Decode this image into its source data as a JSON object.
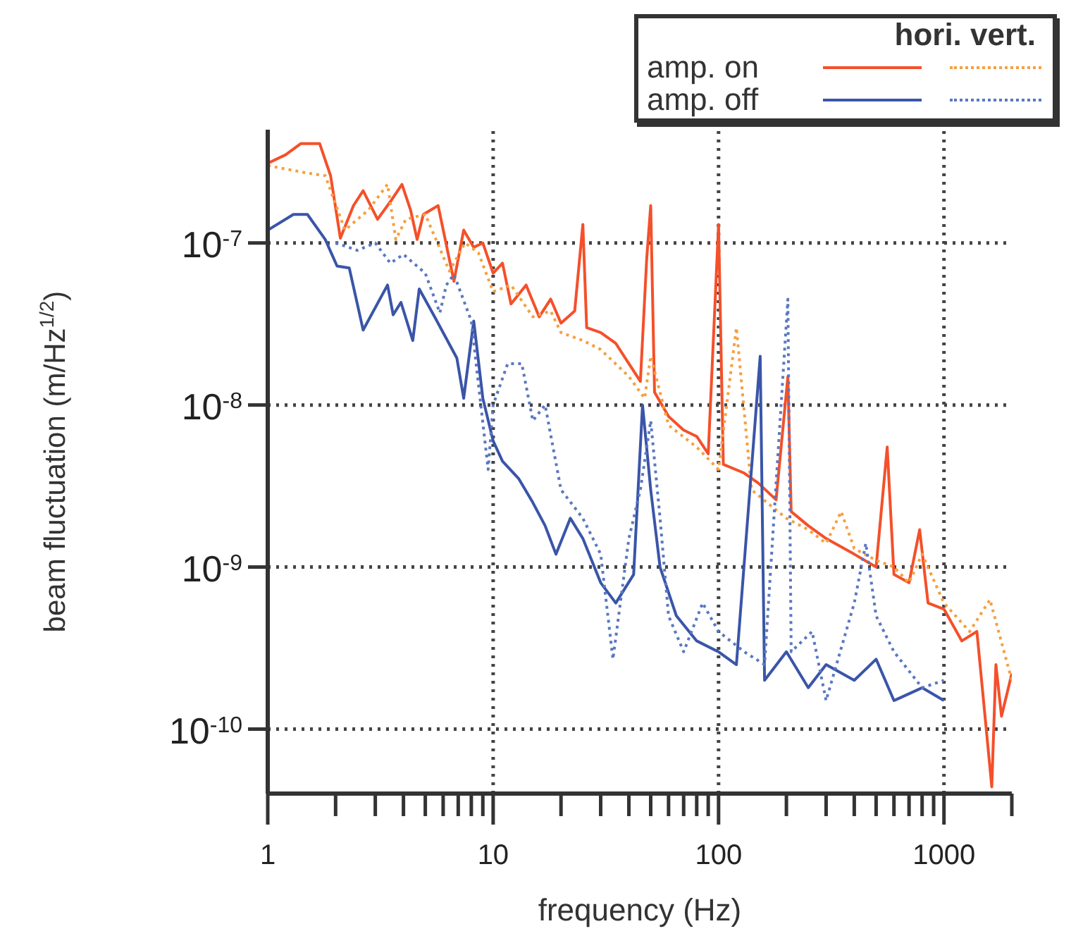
{
  "chart_data": {
    "type": "line",
    "xlabel": "frequency (Hz)",
    "ylabel": "beam fluctuation (m/Hz$^{1/2}$)",
    "legend_title": "hori. vert.",
    "log": "xy",
    "grid": true,
    "legend": "top right",
    "marker": "none",
    "xlim": [
      1,
      2000
    ],
    "ylim": [
      4e-11,
      5e-07
    ],
    "xticks": [
      1,
      {
        "value": 2,
        "label": null
      },
      {
        "value": 3,
        "label": null
      },
      {
        "value": 4,
        "label": null
      },
      {
        "value": 5,
        "label": null
      },
      {
        "value": 6,
        "label": null
      },
      {
        "value": 7,
        "label": null
      },
      {
        "value": 8,
        "label": null
      },
      {
        "value": 9,
        "label": null
      },
      10,
      {
        "value": 20,
        "label": null
      },
      {
        "value": 30,
        "label": null
      },
      {
        "value": 40,
        "label": null
      },
      {
        "value": 50,
        "label": null
      },
      {
        "value": 60,
        "label": null
      },
      {
        "value": 70,
        "label": null
      },
      {
        "value": 80,
        "label": null
      },
      {
        "value": 90,
        "label": null
      },
      100,
      {
        "value": 200,
        "label": null
      },
      {
        "value": 300,
        "label": null
      },
      {
        "value": 400,
        "label": null
      },
      {
        "value": 500,
        "label": null
      },
      {
        "value": 600,
        "label": null
      },
      {
        "value": 700,
        "label": null
      },
      {
        "value": 800,
        "label": null
      },
      {
        "value": 900,
        "label": null
      },
      1000,
      {
        "value": 2000,
        "label": null
      }
    ],
    "yticks": [
      {
        "value": 1e-10,
        "label": "10$^{-10}$"
      },
      {
        "value": 1e-09,
        "label": "10$^{-9}$"
      },
      {
        "value": 1e-08,
        "label": "10$^{-8}$"
      },
      {
        "value": 1e-07,
        "label": "10$^{-7}$"
      }
    ],
    "series": [
      {
        "name": "amp. on",
        "color": "#f4502a",
        "line_style": "solid",
        "x": [
          1,
          1.2,
          1.4,
          1.7,
          1.9,
          2.1,
          2.4,
          2.65,
          3.07,
          3.5,
          3.94,
          4.3,
          4.6,
          4.9,
          5.7,
          6.7,
          7.4,
          8.2,
          9,
          10,
          11,
          12,
          14,
          16,
          18,
          20,
          23,
          25,
          26,
          30,
          35,
          40,
          45,
          48,
          50,
          52,
          60,
          70,
          80,
          90,
          100,
          105,
          130,
          150,
          180,
          203,
          210,
          250,
          300,
          400,
          500,
          560,
          600,
          700,
          780,
          850,
          1000,
          1200,
          1400,
          1630,
          1700,
          1800,
          2000
        ],
        "values": [
          3.1e-07,
          3.5e-07,
          4.1e-07,
          4.1e-07,
          2.6e-07,
          1.07e-07,
          1.7e-07,
          2.1e-07,
          1.4e-07,
          1.8e-07,
          2.3e-07,
          1.6e-07,
          1.05e-07,
          1.5e-07,
          1.7e-07,
          5.8e-08,
          1.2e-07,
          9.4e-08,
          1e-07,
          6.5e-08,
          7.5e-08,
          4.2e-08,
          5.5e-08,
          3.5e-08,
          4.5e-08,
          3.2e-08,
          3.8e-08,
          1.3e-07,
          3e-08,
          2.8e-08,
          2.4e-08,
          1.8e-08,
          1.4e-08,
          8e-08,
          1.7e-07,
          1.2e-08,
          8.5e-09,
          7e-09,
          6.4e-09,
          5e-09,
          1.3e-07,
          4.3e-09,
          3.8e-09,
          3.3e-09,
          2.6e-09,
          1.5e-08,
          2.2e-09,
          1.8e-09,
          1.5e-09,
          1.2e-09,
          1e-09,
          5.5e-09,
          9e-10,
          8e-10,
          1.7e-09,
          6e-10,
          5.5e-10,
          3.5e-10,
          4e-10,
          4.4e-11,
          2.5e-10,
          1.2e-10,
          2.2e-10
        ]
      },
      {
        "color": "#f5a040",
        "line_style": "dotted",
        "x": [
          1,
          1.5,
          1.8,
          2.2,
          2.8,
          3.4,
          3.7,
          4.1,
          5,
          6.4,
          7.5,
          8.6,
          10,
          12,
          15,
          18,
          20,
          25,
          30,
          40,
          47,
          50,
          60,
          80,
          100,
          120,
          140,
          170,
          200,
          250,
          300,
          350,
          400,
          500,
          600,
          700,
          800,
          1000,
          1300,
          1600,
          2000
        ],
        "values": [
          3e-07,
          2.7e-07,
          2.6e-07,
          1.2e-07,
          1.6e-07,
          2.3e-07,
          1.05e-07,
          1.4e-07,
          1.5e-07,
          6.7e-08,
          1e-07,
          8.7e-08,
          5e-08,
          5.5e-08,
          3.5e-08,
          3.8e-08,
          2.8e-08,
          2.5e-08,
          2.2e-08,
          1.5e-08,
          1.1e-08,
          2e-08,
          7.5e-09,
          5.5e-09,
          4e-09,
          3e-08,
          3e-09,
          2.4e-09,
          2e-09,
          1.7e-09,
          1.4e-09,
          2.2e-09,
          1.3e-09,
          1.1e-09,
          1e-09,
          8e-10,
          1.2e-09,
          6e-10,
          4e-10,
          6.3e-10,
          2e-10
        ]
      },
      {
        "name": "amp. off",
        "color": "#3a55a8",
        "line_style": "solid",
        "x": [
          1,
          1.3,
          1.5,
          1.8,
          2.03,
          2.3,
          2.65,
          3.4,
          3.6,
          3.9,
          4.4,
          4.7,
          5.5,
          6.9,
          7.4,
          8.2,
          9,
          10,
          11,
          13,
          15,
          17,
          19,
          22,
          25,
          30,
          35,
          42,
          46,
          50,
          55,
          65,
          80,
          100,
          120,
          153,
          160,
          200,
          250,
          300,
          400,
          500,
          600,
          800,
          1000
        ],
        "values": [
          1.2e-07,
          1.5e-07,
          1.5e-07,
          1.05e-07,
          7.2e-08,
          7e-08,
          2.9e-08,
          5.5e-08,
          3.6e-08,
          4.3e-08,
          2.5e-08,
          5.2e-08,
          3.5e-08,
          1.95e-08,
          1.1e-08,
          3.3e-08,
          1.1e-08,
          6e-09,
          4.5e-09,
          3.5e-09,
          2.5e-09,
          1.8e-09,
          1.2e-09,
          2e-09,
          1.5e-09,
          8e-10,
          6e-10,
          9e-10,
          1e-08,
          3e-09,
          1e-09,
          5e-10,
          3.5e-10,
          3e-10,
          2.5e-10,
          2e-08,
          2e-10,
          3e-10,
          1.8e-10,
          2.5e-10,
          2e-10,
          2.7e-10,
          1.5e-10,
          1.8e-10,
          1.5e-10
        ]
      },
      {
        "color": "#5a78c0",
        "line_style": "dotted",
        "x": [
          2,
          2.5,
          3,
          3.5,
          4,
          5,
          5.8,
          6.2,
          6.7,
          8,
          9.5,
          10,
          11.6,
          13.4,
          15,
          17,
          20,
          25,
          30,
          34,
          40,
          45,
          50,
          55,
          60,
          70,
          85,
          100,
          130,
          160,
          203,
          210,
          260,
          300,
          400,
          450,
          500,
          600,
          800,
          1000
        ],
        "values": [
          1e-07,
          9e-08,
          1e-07,
          7.5e-08,
          8.5e-08,
          6.5e-08,
          3.7e-08,
          5.5e-08,
          6.4e-08,
          3.3e-08,
          4e-09,
          1e-08,
          1.8e-08,
          1.8e-08,
          8e-09,
          1e-08,
          3e-09,
          2e-09,
          1.2e-09,
          2.7e-10,
          1.5e-09,
          3e-09,
          8e-09,
          2e-09,
          5e-10,
          3e-10,
          6e-10,
          4e-10,
          3e-10,
          2.5e-10,
          4.5e-08,
          3e-10,
          4e-10,
          1.5e-10,
          6e-10,
          1.4e-09,
          5e-10,
          3e-10,
          1.8e-10,
          2e-10
        ]
      }
    ]
  }
}
